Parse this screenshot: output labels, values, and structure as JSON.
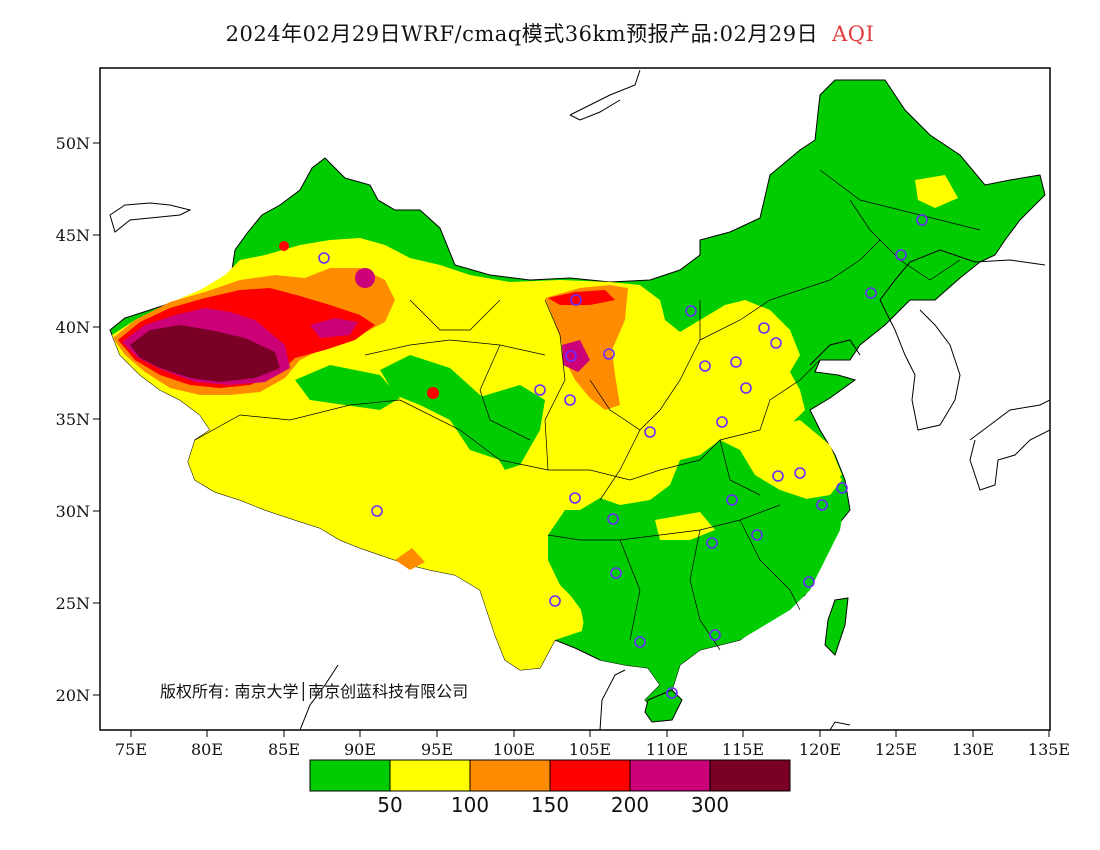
{
  "title": {
    "main": "2024年02月29日WRF/cmaq模式36km预报产品:02月29日",
    "variable": "AQI"
  },
  "axes": {
    "y_labels": [
      "50N",
      "45N",
      "40N",
      "35N",
      "30N",
      "25N",
      "20N"
    ],
    "x_labels": [
      "75E",
      "80E",
      "85E",
      "90E",
      "95E",
      "100E",
      "105E",
      "110E",
      "115E",
      "120E",
      "125E",
      "130E",
      "135E"
    ]
  },
  "copyright": "版权所有: 南京大学│南京创蓝科技有限公司",
  "legend": {
    "colors": [
      "#00cc00",
      "#ffff00",
      "#ff8c00",
      "#ff0000",
      "#cc0077",
      "#7a0026"
    ],
    "thresholds": [
      "50",
      "100",
      "150",
      "200",
      "300"
    ]
  },
  "colors": {
    "good": "#00cc00",
    "moderate": "#ffff00",
    "light": "#ff8c00",
    "medium": "#ff0000",
    "heavy": "#cc0077",
    "severe": "#7a0026",
    "station_marker": "#6a2cff"
  }
}
